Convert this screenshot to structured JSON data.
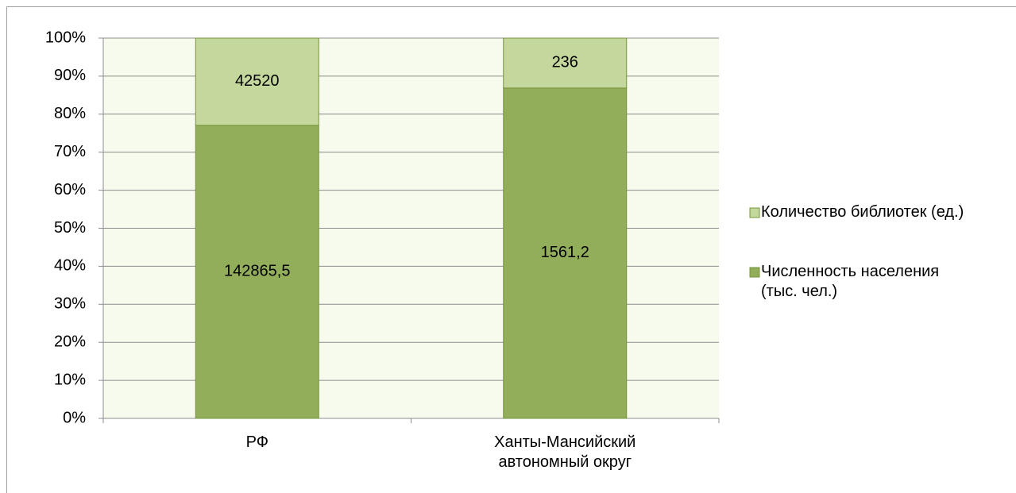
{
  "chart_data": {
    "type": "bar",
    "stacking": "percent",
    "categories": [
      "РФ",
      "Ханты-Мансийский автономный округ"
    ],
    "series": [
      {
        "name": "Численность населения (тыс. чел.)",
        "color": "#93ae5a",
        "values": [
          142865.5,
          1561.2
        ],
        "value_labels": [
          "142865,5",
          "1561,2"
        ]
      },
      {
        "name": "Количество библиотек (ед.)",
        "color": "#c4d79c",
        "values": [
          42520,
          236
        ]
      }
    ],
    "ylim": [
      0,
      100
    ],
    "yticks": [
      {
        "value": 0,
        "label": "0%"
      },
      {
        "value": 10,
        "label": "10%"
      },
      {
        "value": 20,
        "label": "20%"
      },
      {
        "value": 30,
        "label": "30%"
      },
      {
        "value": 40,
        "label": "40%"
      },
      {
        "value": 50,
        "label": "50%"
      },
      {
        "value": 60,
        "label": "60%"
      },
      {
        "value": 70,
        "label": "70%"
      },
      {
        "value": 80,
        "label": "80%"
      },
      {
        "value": 90,
        "label": "90%"
      },
      {
        "value": 100,
        "label": "100%"
      }
    ],
    "grid": true,
    "legend": "right"
  }
}
